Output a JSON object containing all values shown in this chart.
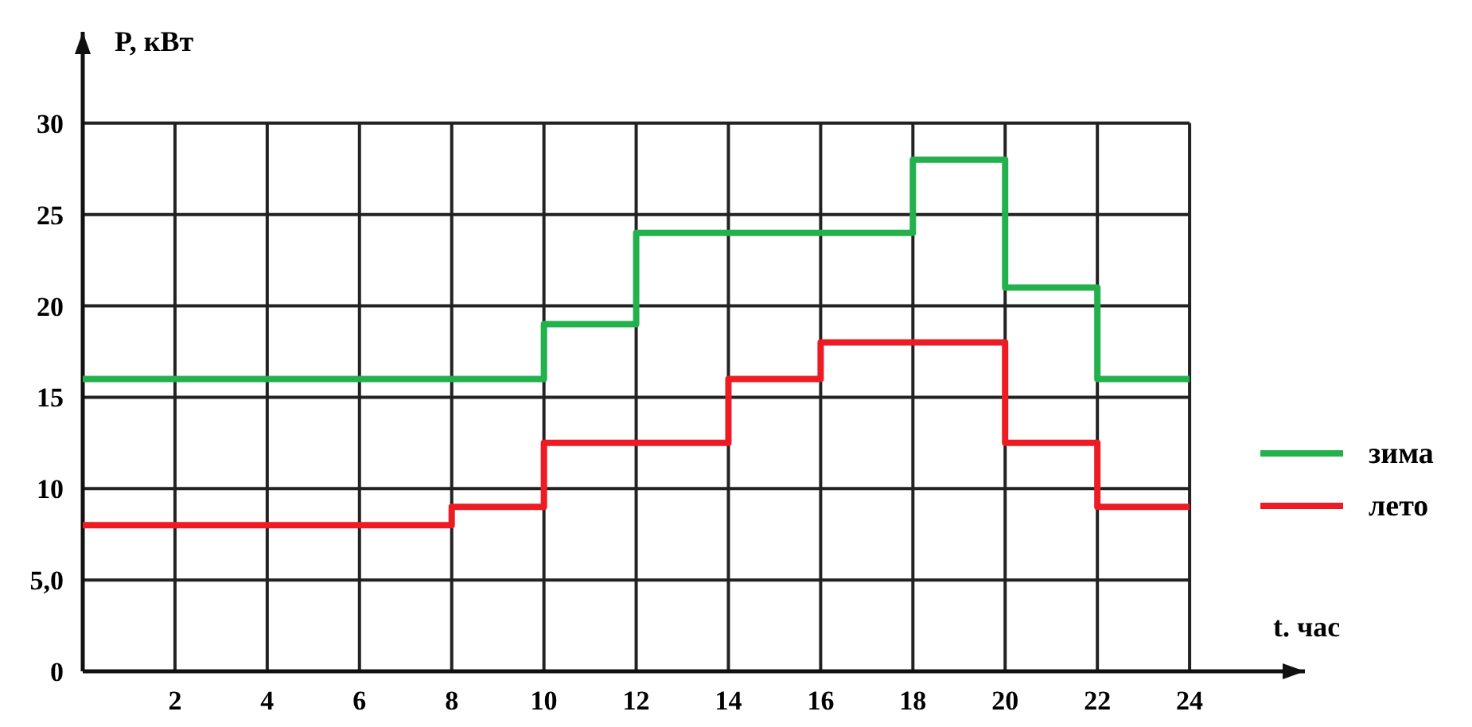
{
  "chart_data": {
    "type": "step",
    "xlabel": "t. час",
    "ylabel": "P, кВт",
    "xlim": [
      0,
      26.5
    ],
    "ylim": [
      0,
      35
    ],
    "xticks": [
      2,
      4,
      6,
      8,
      10,
      12,
      14,
      16,
      18,
      20,
      22,
      24
    ],
    "yticks": [
      0,
      {
        "value": 5,
        "label": "5,0"
      },
      10,
      15,
      20,
      25,
      30
    ],
    "grid": true,
    "legend": "right",
    "line_style": "solid",
    "marker": "none",
    "series": [
      {
        "name": "зима",
        "color": "#22b14c",
        "x": [
          0,
          10,
          12,
          18,
          20,
          22,
          24
        ],
        "values": [
          16,
          19,
          24,
          28,
          21,
          16,
          16
        ]
      },
      {
        "name": "лето",
        "color": "#ed1c24",
        "x": [
          0,
          8,
          10,
          14,
          16,
          20,
          22,
          24
        ],
        "values": [
          8,
          9,
          12.5,
          16,
          18,
          12.5,
          9,
          9
        ]
      }
    ]
  }
}
